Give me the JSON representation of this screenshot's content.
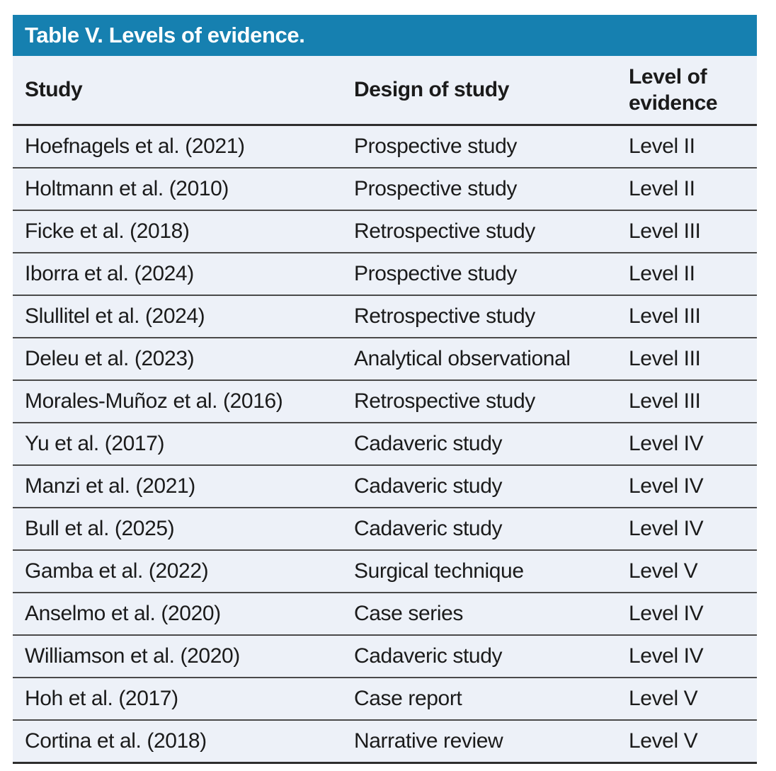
{
  "title": "Table V. Levels of evidence.",
  "colors": {
    "title_bar_bg": "#1680b0",
    "title_text": "#ffffff",
    "row_bg": "#edf1f8",
    "body_text": "#1b1b1b",
    "rule_dark": "#2e2e2e",
    "rule_row": "#4a4a4a"
  },
  "table": {
    "columns": {
      "study": "Study",
      "design": "Design of study",
      "level": "Level of evidence"
    },
    "rows": [
      {
        "study": "Hoefnagels et al. (2021)",
        "design": "Prospective study",
        "level": "Level II"
      },
      {
        "study": "Holtmann et al. (2010)",
        "design": "Prospective study",
        "level": "Level II"
      },
      {
        "study": "Ficke et al. (2018)",
        "design": "Retrospective study",
        "level": "Level III"
      },
      {
        "study": "Iborra et al. (2024)",
        "design": "Prospective study",
        "level": "Level II"
      },
      {
        "study": "Slullitel et al. (2024)",
        "design": "Retrospective study",
        "level": "Level III"
      },
      {
        "study": "Deleu et al. (2023)",
        "design": "Analytical observational",
        "level": "Level III"
      },
      {
        "study": "Morales-Muñoz et al. (2016)",
        "design": "Retrospective study",
        "level": "Level III"
      },
      {
        "study": "Yu et al. (2017)",
        "design": "Cadaveric study",
        "level": "Level IV"
      },
      {
        "study": "Manzi et al. (2021)",
        "design": "Cadaveric study",
        "level": "Level IV"
      },
      {
        "study": "Bull et al. (2025)",
        "design": "Cadaveric study",
        "level": "Level IV"
      },
      {
        "study": "Gamba et al. (2022)",
        "design": "Surgical technique",
        "level": "Level V"
      },
      {
        "study": "Anselmo et al. (2020)",
        "design": "Case series",
        "level": "Level IV"
      },
      {
        "study": "Williamson et al. (2020)",
        "design": "Cadaveric study",
        "level": "Level IV"
      },
      {
        "study": "Hoh et al. (2017)",
        "design": "Case report",
        "level": "Level V"
      },
      {
        "study": "Cortina et al. (2018)",
        "design": "Narrative review",
        "level": "Level V"
      }
    ]
  }
}
